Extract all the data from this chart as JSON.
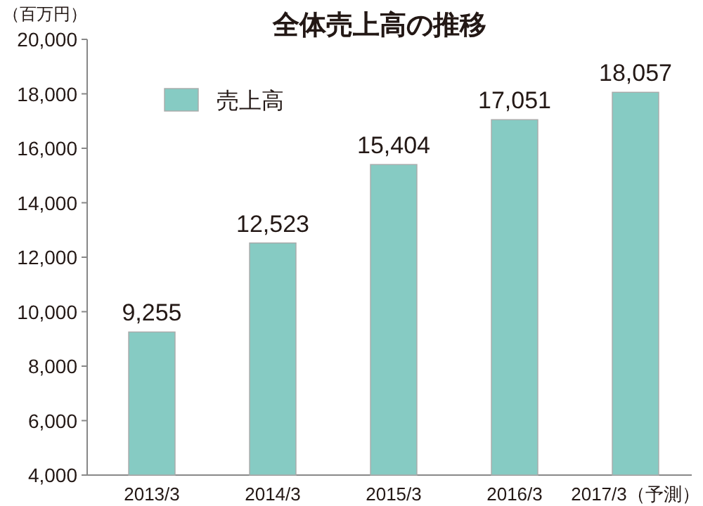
{
  "chart_data": {
    "type": "bar",
    "title": "全体売上高の推移",
    "ylabel": "（百万円）",
    "categories": [
      "2013/3",
      "2014/3",
      "2015/3",
      "2016/3",
      "2017/3（予測）"
    ],
    "series": [
      {
        "name": "売上高",
        "color": "#86cbc3",
        "values": [
          9255,
          12523,
          15404,
          17051,
          18057
        ],
        "value_labels": [
          "9,255",
          "12,523",
          "15,404",
          "17,051",
          "18,057"
        ]
      }
    ],
    "ylim": [
      4000,
      20000
    ],
    "yticks": [
      {
        "value": 4000,
        "label": "4,000"
      },
      {
        "value": 6000,
        "label": "6,000"
      },
      {
        "value": 8000,
        "label": "8,000"
      },
      {
        "value": 10000,
        "label": "10,000"
      },
      {
        "value": 12000,
        "label": "12,000"
      },
      {
        "value": 14000,
        "label": "14,000"
      },
      {
        "value": 16000,
        "label": "16,000"
      },
      {
        "value": 18000,
        "label": "18,000"
      },
      {
        "value": 20000,
        "label": "20,000"
      }
    ],
    "legend": "top left",
    "grid": false
  }
}
